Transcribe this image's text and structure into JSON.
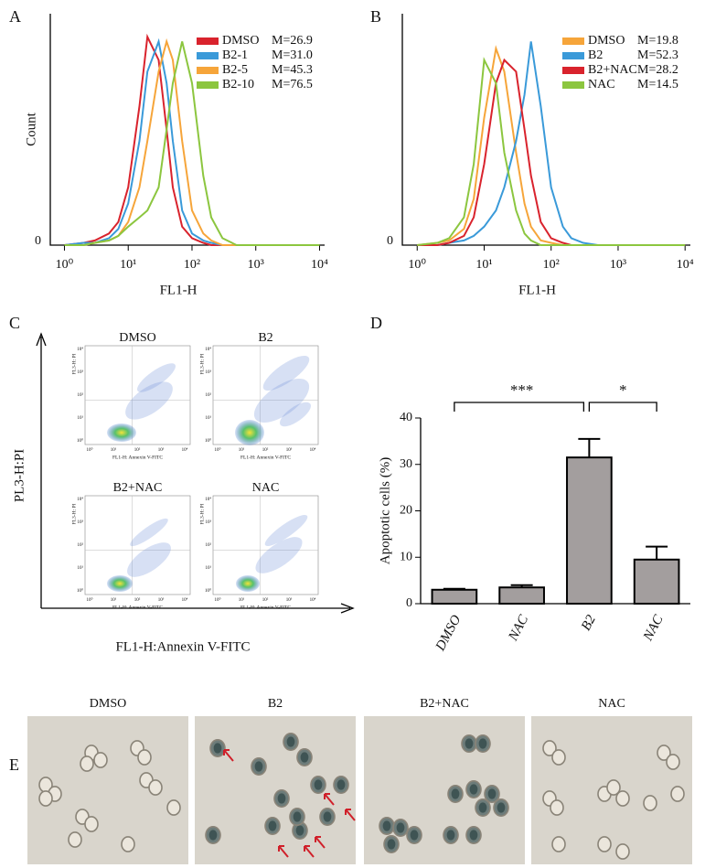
{
  "chart_data": [
    {
      "type": "line",
      "label": "A",
      "xlabel": "FL1-H",
      "ylabel": "Count",
      "xscale": "log",
      "legend": "upper right",
      "x": [
        1,
        2,
        3,
        5,
        7,
        10,
        15,
        20,
        30,
        40,
        50,
        70,
        100,
        150,
        200,
        300,
        500,
        1000,
        10000
      ],
      "xlim": [
        0.6,
        12000
      ],
      "xticks": [
        {
          "value": 1,
          "label": "10⁰"
        },
        {
          "value": 10,
          "label": "10¹"
        },
        {
          "value": 100,
          "label": "10²"
        },
        {
          "value": 1000,
          "label": "10³"
        },
        {
          "value": 10000,
          "label": "10⁴"
        }
      ],
      "ylim": [
        0,
        100
      ],
      "yticks": [
        0
      ],
      "series": [
        {
          "name": "DMSO",
          "stat": "M=26.9",
          "color": "#d9232d",
          "values": [
            0,
            1,
            2,
            5,
            10,
            25,
            60,
            90,
            80,
            50,
            25,
            8,
            3,
            1,
            0,
            0,
            0,
            0,
            0
          ]
        },
        {
          "name": "B2-1",
          "stat": "M=31.0",
          "color": "#3a9ad9",
          "values": [
            0,
            1,
            1,
            3,
            7,
            18,
            45,
            75,
            88,
            70,
            45,
            15,
            5,
            2,
            1,
            0,
            0,
            0,
            0
          ]
        },
        {
          "name": "B2-5",
          "stat": "M=45.3",
          "color": "#f6a53a",
          "values": [
            0,
            0,
            1,
            2,
            4,
            10,
            25,
            45,
            75,
            88,
            80,
            45,
            15,
            5,
            2,
            0,
            0,
            0,
            0
          ]
        },
        {
          "name": "B2-10",
          "stat": "M=76.5",
          "color": "#8cc63f",
          "values": [
            0,
            0,
            1,
            2,
            4,
            8,
            12,
            15,
            25,
            50,
            70,
            88,
            70,
            30,
            12,
            3,
            0,
            0,
            0
          ]
        }
      ]
    },
    {
      "type": "line",
      "label": "B",
      "xlabel": "FL1-H",
      "xscale": "log",
      "legend": "upper right",
      "x": [
        1,
        2,
        3,
        5,
        7,
        10,
        15,
        20,
        30,
        40,
        50,
        70,
        100,
        150,
        200,
        300,
        500,
        1000,
        10000
      ],
      "xlim": [
        0.6,
        12000
      ],
      "xticks": [
        {
          "value": 1,
          "label": "10⁰"
        },
        {
          "value": 10,
          "label": "10¹"
        },
        {
          "value": 100,
          "label": "10²"
        },
        {
          "value": 1000,
          "label": "10³"
        },
        {
          "value": 10000,
          "label": "10⁴"
        }
      ],
      "ylim": [
        0,
        100
      ],
      "yticks": [
        0
      ],
      "series": [
        {
          "name": "DMSO",
          "stat": "M=19.8",
          "color": "#f6a53a",
          "values": [
            0,
            1,
            2,
            7,
            20,
            55,
            85,
            75,
            40,
            18,
            8,
            2,
            1,
            0,
            0,
            0,
            0,
            0,
            0
          ]
        },
        {
          "name": "B2",
          "stat": "M=52.3",
          "color": "#3a9ad9",
          "values": [
            0,
            0,
            1,
            2,
            4,
            8,
            15,
            25,
            45,
            65,
            88,
            60,
            25,
            8,
            3,
            1,
            0,
            0,
            0
          ]
        },
        {
          "name": "B2+NAC",
          "stat": "M=28.2",
          "color": "#d9232d",
          "values": [
            0,
            0,
            1,
            4,
            12,
            35,
            70,
            80,
            75,
            50,
            30,
            10,
            3,
            1,
            0,
            0,
            0,
            0,
            0
          ]
        },
        {
          "name": "NAC",
          "stat": "M=14.5",
          "color": "#8cc63f",
          "values": [
            0,
            1,
            3,
            12,
            35,
            80,
            70,
            40,
            15,
            5,
            2,
            0,
            0,
            0,
            0,
            0,
            0,
            0,
            0
          ]
        }
      ]
    },
    {
      "type": "bar",
      "label": "D",
      "ylabel": "Apoptotic cells (%)",
      "categories": [
        "DMSO",
        "NAC",
        "B2",
        "NAC"
      ],
      "values": [
        3,
        3.5,
        31.5,
        9.5
      ],
      "errors": [
        0.2,
        0.5,
        4,
        2.8
      ],
      "color": "#a39e9e",
      "ylim": [
        0,
        40
      ],
      "yticks": [
        0,
        10,
        20,
        30,
        40
      ],
      "annotations": [
        "***",
        "*"
      ]
    }
  ],
  "scatter_panel": {
    "label": "C",
    "xlabel": "FL1-H:Annexin V-FITC",
    "ylabel": "PL3-H:PI",
    "plot_xlabel": "FL1-H: Annexin V-FITC",
    "plot_ylabel": "FL3-H: PI",
    "ticks": [
      "10⁰",
      "10¹",
      "10²",
      "10³",
      "10⁴"
    ],
    "titles": [
      "DMSO",
      "B2",
      "B2+NAC",
      "NAC"
    ]
  },
  "image_panel": {
    "label": "E",
    "titles": [
      "DMSO",
      "B2",
      "B2+NAC",
      "NAC"
    ]
  }
}
